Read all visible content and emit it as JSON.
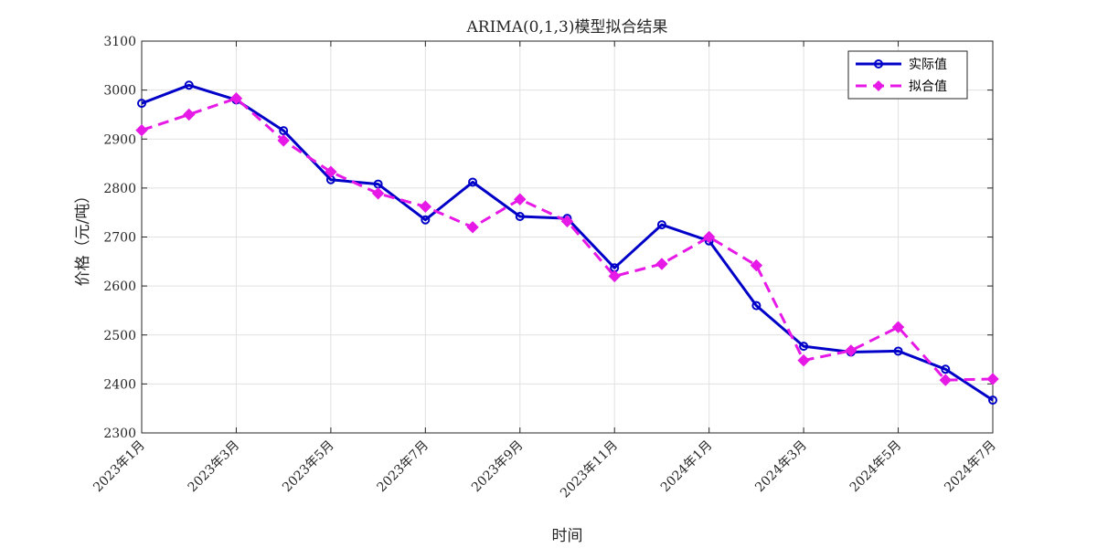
{
  "chart_data": {
    "type": "line",
    "title": "ARIMA(0,1,3)模型拟合结果",
    "xlabel": "时间",
    "ylabel": "价格（元/吨）",
    "x": [
      "2023-01",
      "2023-02",
      "2023-03",
      "2023-04",
      "2023-05",
      "2023-06",
      "2023-07",
      "2023-08",
      "2023-09",
      "2023-10",
      "2023-11",
      "2023-12",
      "2024-01",
      "2024-02",
      "2024-03",
      "2024-04",
      "2024-05",
      "2024-06",
      "2024-07"
    ],
    "x_tick_labels": [
      "2023年1月",
      "2023年3月",
      "2023年5月",
      "2023年7月",
      "2023年9月",
      "2023年11月",
      "2024年1月",
      "2024年3月",
      "2024年5月",
      "2024年7月"
    ],
    "x_tick_months": [
      "2023-01",
      "2023-03",
      "2023-05",
      "2023-07",
      "2023-09",
      "2023-11",
      "2024-01",
      "2024-03",
      "2024-05",
      "2024-07"
    ],
    "ylim": [
      2300,
      3100
    ],
    "yticks": [
      2300,
      2400,
      2500,
      2600,
      2700,
      2800,
      2900,
      3000,
      3100
    ],
    "grid": true,
    "legend_position": "top-right",
    "series": [
      {
        "name": "实际值",
        "color": "#0000c8",
        "line_style": "solid",
        "marker": "circle",
        "values": [
          2973,
          3010,
          2980,
          2917,
          2817,
          2808,
          2735,
          2812,
          2742,
          2738,
          2637,
          2725,
          2692,
          2560,
          2477,
          2465,
          2467,
          2430,
          2367
        ]
      },
      {
        "name": "拟合值",
        "color": "#e619e6",
        "line_style": "dashed",
        "marker": "diamond",
        "values": [
          2918,
          2950,
          2983,
          2897,
          2833,
          2789,
          2762,
          2720,
          2777,
          2732,
          2620,
          2645,
          2700,
          2642,
          2448,
          2468,
          2516,
          2408,
          2410
        ]
      }
    ]
  }
}
